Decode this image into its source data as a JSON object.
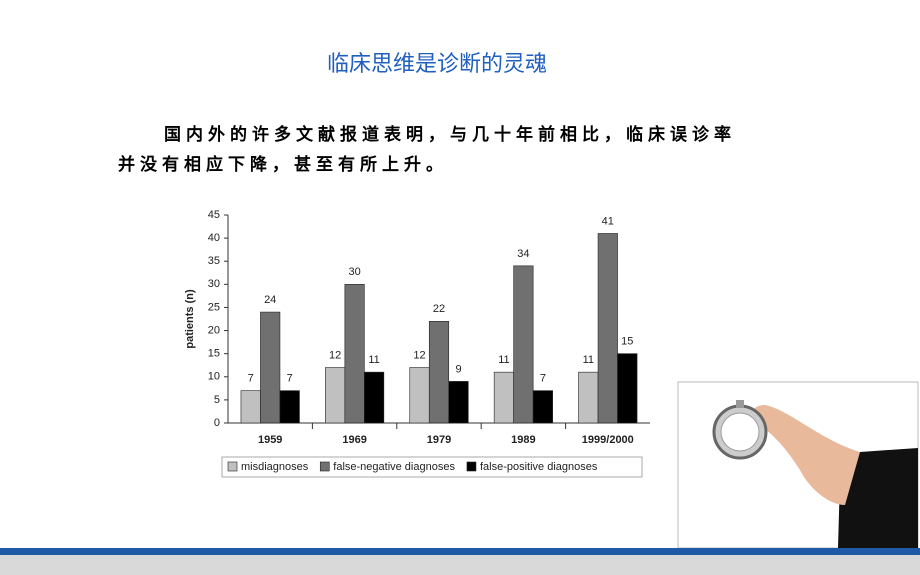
{
  "slide": {
    "title": "临床思维是诊断的灵魂",
    "paragraph": "国内外的许多文献报道表明，与几十年前相比，临床误诊率并没有相应下降，甚至有所上升。"
  },
  "chart_data": {
    "type": "bar",
    "y_label": "patients (n)",
    "categories": [
      "1959",
      "1969",
      "1979",
      "1989",
      "1999/2000"
    ],
    "series": [
      {
        "name": "misdiagnoses",
        "color": "#c0c0c0",
        "values": [
          7,
          12,
          12,
          11,
          11
        ]
      },
      {
        "name": "false-negative diagnoses",
        "color": "#707070",
        "values": [
          24,
          30,
          22,
          34,
          41
        ]
      },
      {
        "name": "false-positive diagnoses",
        "color": "#000000",
        "values": [
          7,
          11,
          9,
          7,
          15
        ]
      }
    ],
    "ylim": [
      0,
      45
    ],
    "yticks": [
      0,
      5,
      10,
      15,
      20,
      25,
      30,
      35,
      40,
      45
    ],
    "legend": "bottom"
  }
}
